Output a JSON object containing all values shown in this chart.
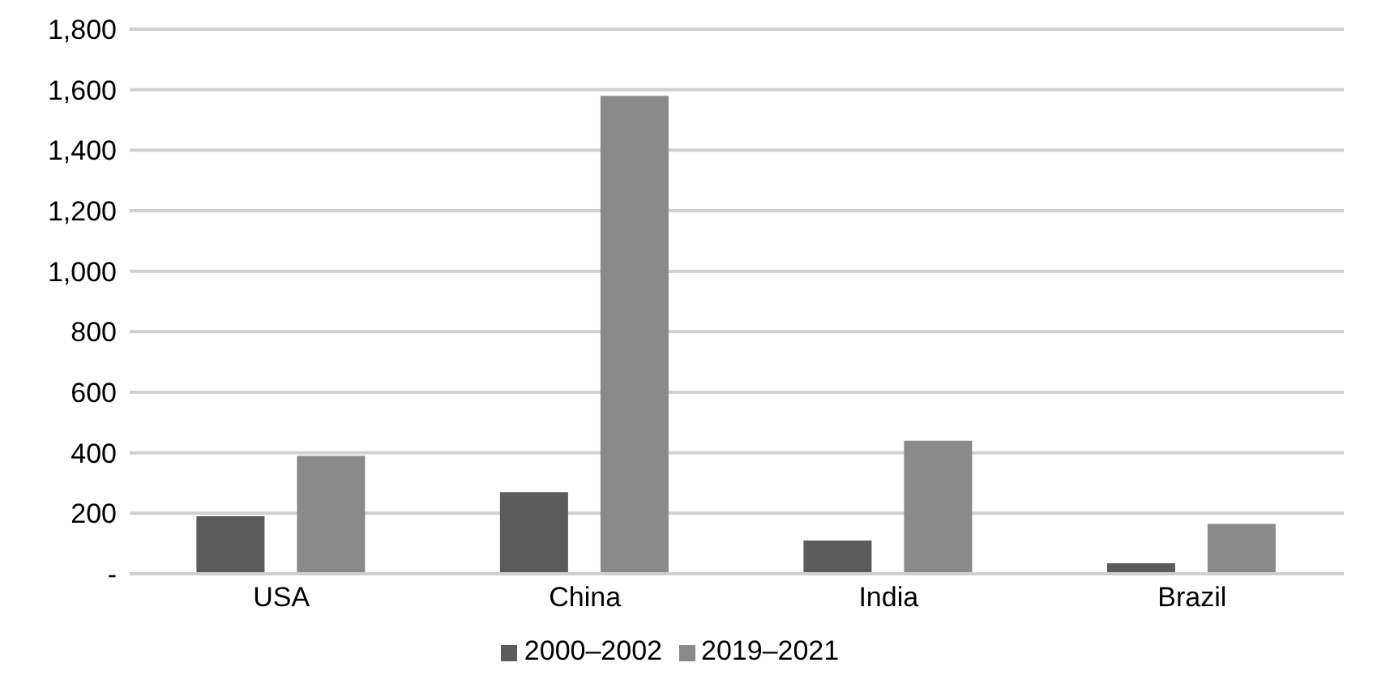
{
  "chart_data": {
    "type": "bar",
    "categories": [
      "USA",
      "China",
      "India",
      "Brazil"
    ],
    "series": [
      {
        "name": "2000–2002",
        "color": "#5b5b5b",
        "values": [
          190,
          270,
          110,
          35
        ]
      },
      {
        "name": "2019–2021",
        "color": "#8a8a8a",
        "values": [
          390,
          1580,
          440,
          165
        ]
      }
    ],
    "ylim": [
      0,
      1800
    ],
    "yticks": [
      {
        "value": 0,
        "label": "-"
      },
      200,
      400,
      600,
      800,
      {
        "value": 1000,
        "label": "1,000"
      },
      {
        "value": 1200,
        "label": "1,200"
      },
      {
        "value": 1400,
        "label": "1,400"
      },
      {
        "value": 1600,
        "label": "1,600"
      },
      {
        "value": 1800,
        "label": "1,800"
      }
    ],
    "grid": "y",
    "legend": "bottom"
  }
}
